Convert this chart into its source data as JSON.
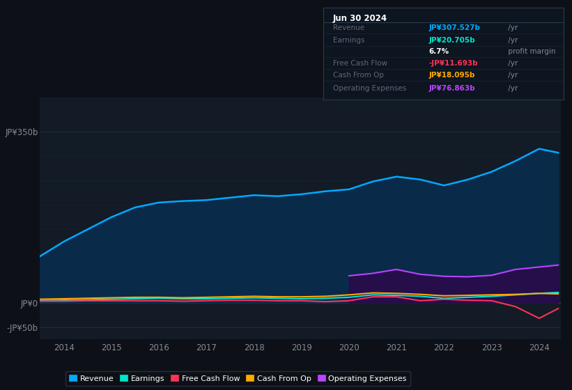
{
  "background_color": "#0d1117",
  "plot_bg_color": "#131b27",
  "years": [
    2013.5,
    2014.0,
    2014.5,
    2015.0,
    2015.5,
    2016.0,
    2016.5,
    2017.0,
    2017.5,
    2018.0,
    2018.5,
    2019.0,
    2019.5,
    2020.0,
    2020.5,
    2021.0,
    2021.5,
    2022.0,
    2022.5,
    2023.0,
    2023.5,
    2024.0,
    2024.4
  ],
  "revenue": [
    95,
    125,
    150,
    175,
    195,
    205,
    208,
    210,
    215,
    220,
    218,
    222,
    228,
    232,
    248,
    258,
    252,
    240,
    252,
    268,
    290,
    315,
    307
  ],
  "earnings": [
    4,
    5,
    6,
    7,
    8,
    9,
    8,
    8,
    9,
    10,
    9,
    8,
    9,
    11,
    16,
    15,
    13,
    9,
    11,
    13,
    16,
    19,
    21
  ],
  "free_cash_flow": [
    3,
    3,
    4,
    4,
    4,
    4,
    3,
    4,
    5,
    5,
    4,
    4,
    2,
    4,
    12,
    12,
    4,
    7,
    5,
    4,
    -8,
    -32,
    -12
  ],
  "cash_from_op": [
    7,
    8,
    9,
    10,
    11,
    11,
    10,
    11,
    12,
    13,
    12,
    12,
    13,
    16,
    20,
    19,
    17,
    14,
    15,
    16,
    17,
    19,
    18
  ],
  "operating_expenses": [
    0,
    0,
    0,
    0,
    0,
    0,
    0,
    0,
    0,
    0,
    0,
    0,
    0,
    55,
    60,
    68,
    58,
    54,
    53,
    56,
    68,
    73,
    77
  ],
  "revenue_color": "#00aaff",
  "earnings_color": "#00e5cc",
  "free_cash_flow_color": "#ff3355",
  "cash_from_op_color": "#ffaa00",
  "operating_expenses_color": "#bb44ff",
  "revenue_fill_color": "#0a2a4a",
  "operating_expenses_fill_color": "#2a0a4a",
  "ylim_min": -75,
  "ylim_max": 420,
  "xticks": [
    2014,
    2015,
    2016,
    2017,
    2018,
    2019,
    2020,
    2021,
    2022,
    2023,
    2024
  ],
  "legend_items": [
    {
      "label": "Revenue",
      "color": "#00aaff"
    },
    {
      "label": "Earnings",
      "color": "#00e5cc"
    },
    {
      "label": "Free Cash Flow",
      "color": "#ff3355"
    },
    {
      "label": "Cash From Op",
      "color": "#ffaa00"
    },
    {
      "label": "Operating Expenses",
      "color": "#bb44ff"
    }
  ],
  "info_box_title": "Jun 30 2024",
  "info_rows": [
    {
      "label": "Revenue",
      "value": "JP¥307.527b",
      "suffix": " /yr",
      "value_color": "#00aaff"
    },
    {
      "label": "Earnings",
      "value": "JP¥20.705b",
      "suffix": " /yr",
      "value_color": "#00e5cc"
    },
    {
      "label": "",
      "value": "6.7%",
      "suffix": " profit margin",
      "value_color": "#ffffff"
    },
    {
      "label": "Free Cash Flow",
      "value": "-JP¥11.693b",
      "suffix": " /yr",
      "value_color": "#ff3355"
    },
    {
      "label": "Cash From Op",
      "value": "JP¥18.095b",
      "suffix": " /yr",
      "value_color": "#ffaa00"
    },
    {
      "label": "Operating Expenses",
      "value": "JP¥76.863b",
      "suffix": " /yr",
      "value_color": "#bb44ff"
    }
  ]
}
